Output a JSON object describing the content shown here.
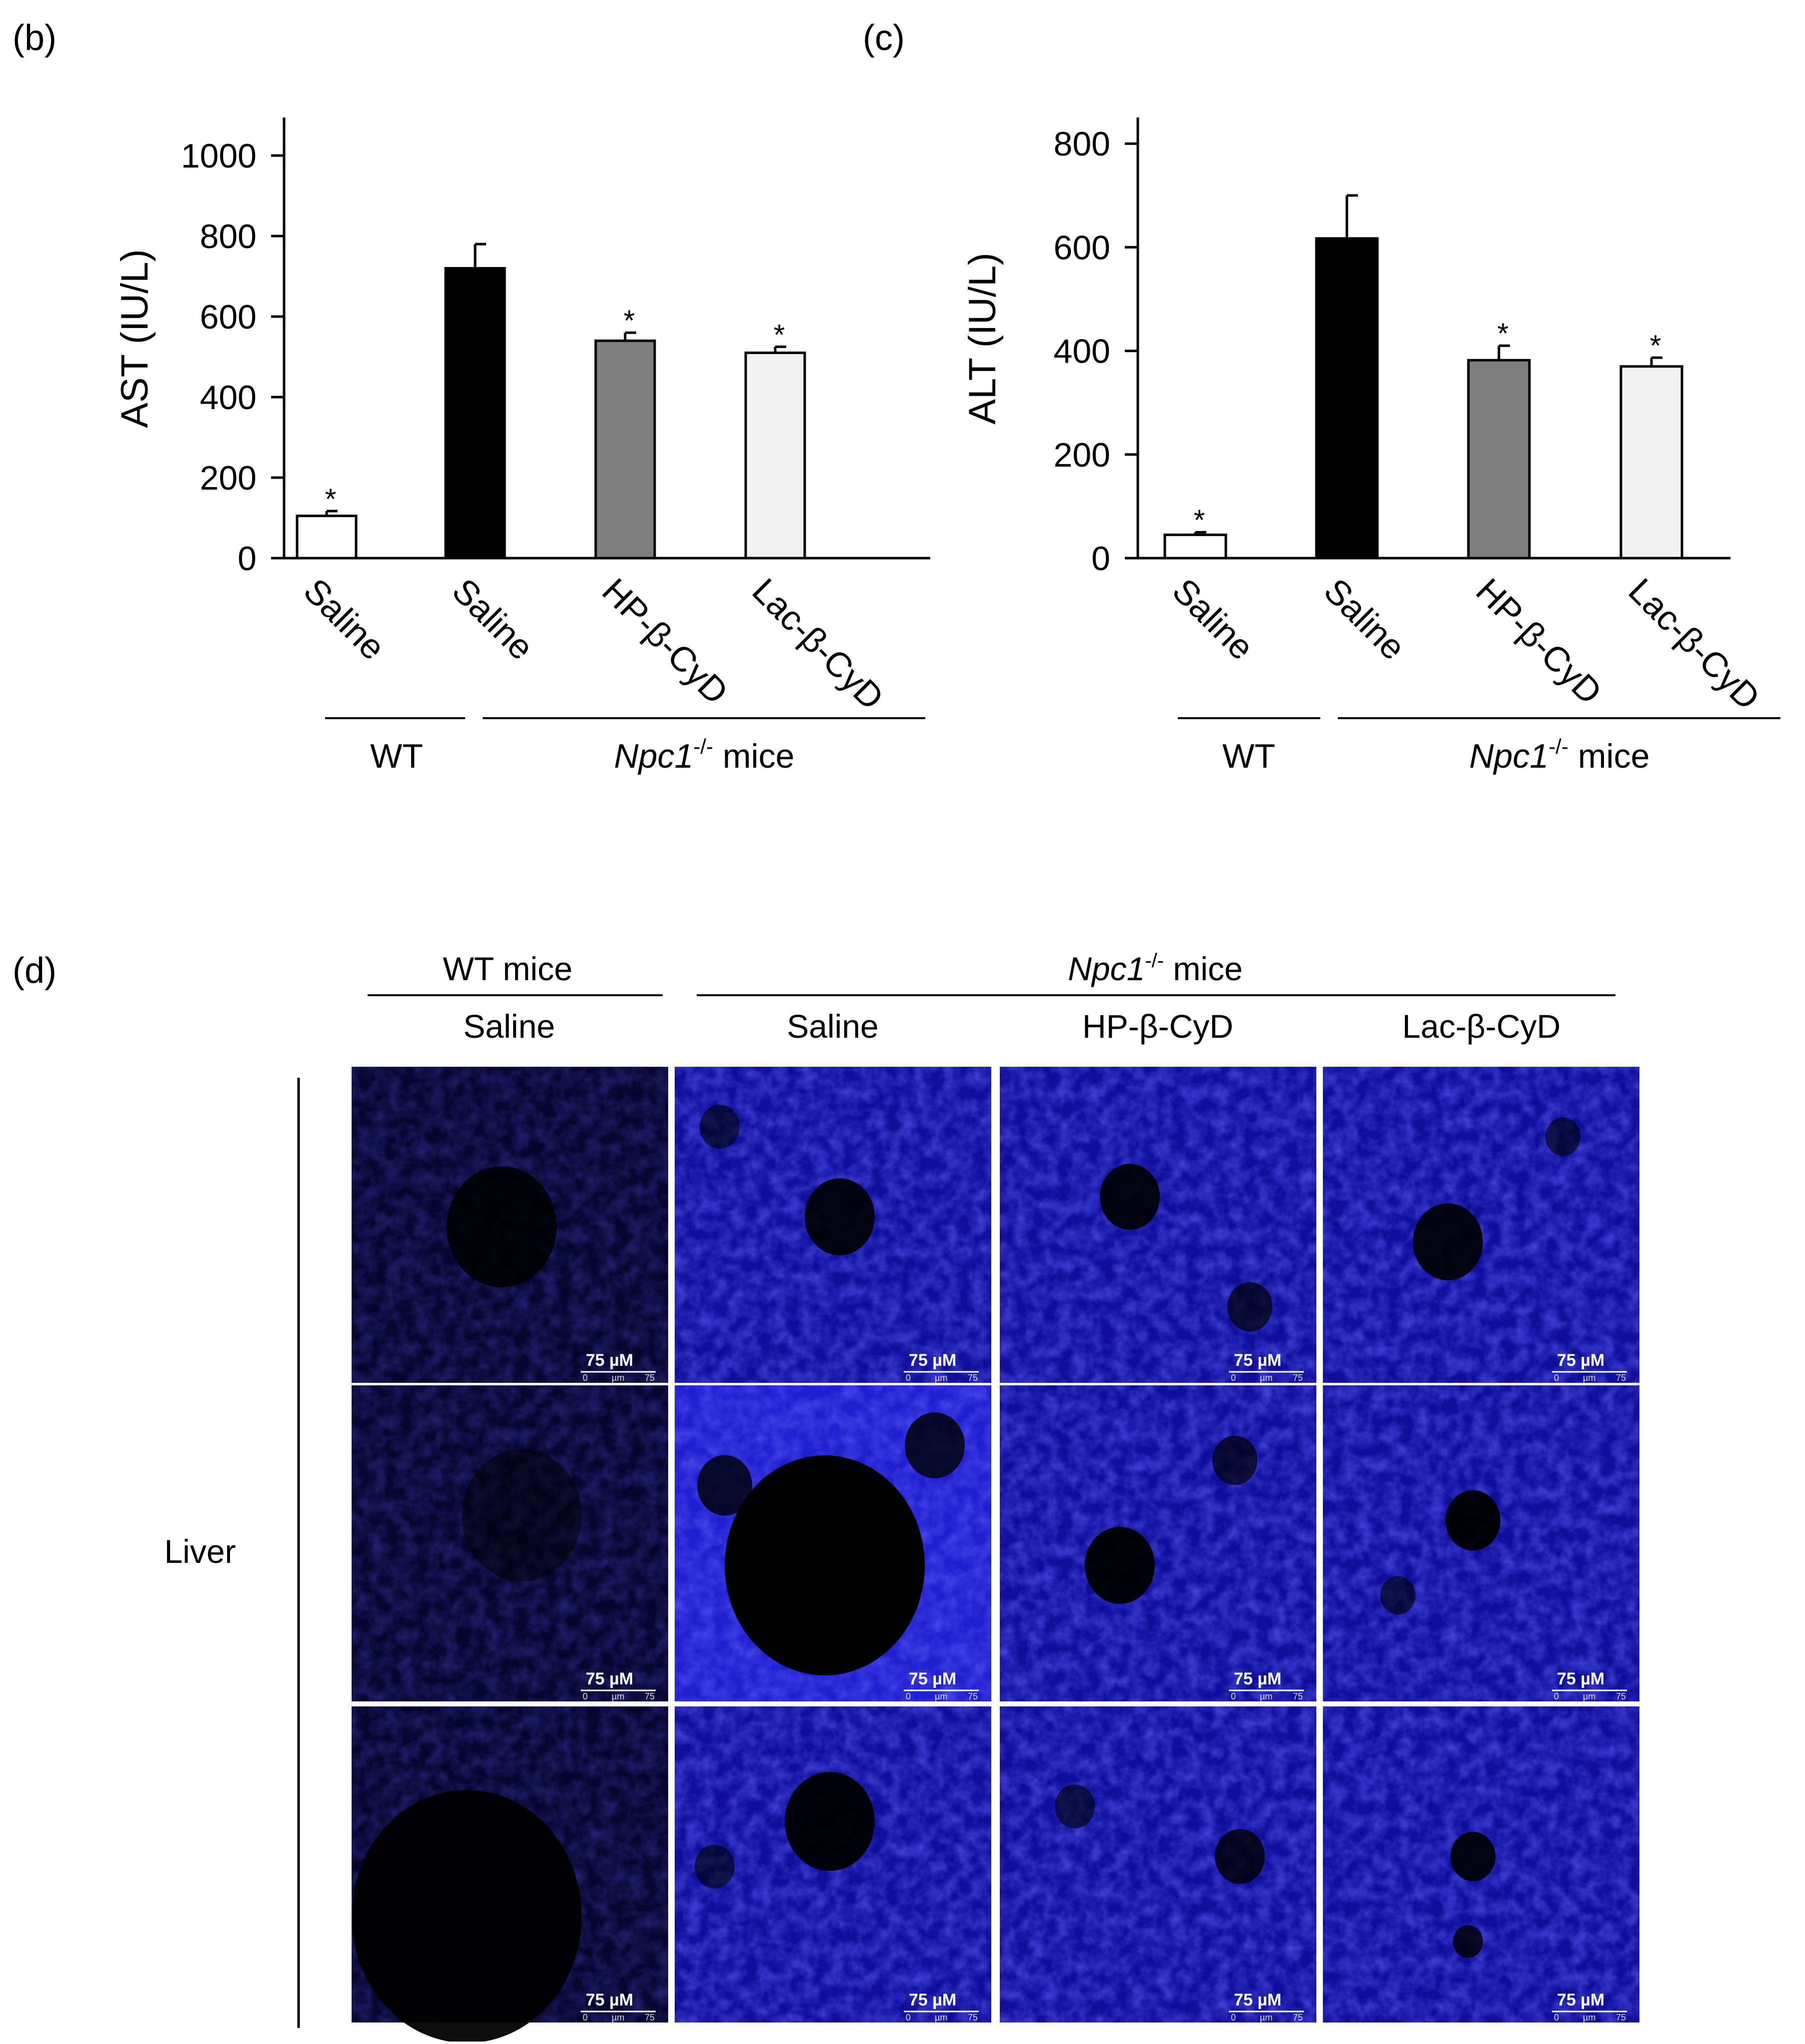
{
  "panels": {
    "b": "(b)",
    "c": "(c)",
    "d": "(d)"
  },
  "groups": {
    "wt": "WT",
    "npc_italic": "Npc1",
    "npc_sup": "-/-",
    "npc_suffix": " mice",
    "wt_mice": "WT mice"
  },
  "categories": [
    "Saline",
    "Saline",
    "HP-β-CyD",
    "Lac-β-CyD"
  ],
  "colors": {
    "wt_saline": "#ffffff",
    "npc_saline": "#000000",
    "hp": "#7f7f7f",
    "lac": "#f2f2f2",
    "micro_blue": "#1a1acc"
  },
  "chart_data": [
    {
      "type": "bar",
      "panel": "(b)",
      "ylabel": "AST (IU/L)",
      "categories": [
        "Saline",
        "Saline",
        "HP-β-CyD",
        "Lac-β-CyD"
      ],
      "values": [
        105,
        720,
        540,
        510
      ],
      "errors": [
        12,
        60,
        20,
        15
      ],
      "significance": [
        "*",
        "",
        "*",
        "*"
      ],
      "ylim": [
        0,
        1100
      ],
      "yticks": [
        0,
        200,
        400,
        600,
        800,
        1000
      ],
      "grid": false
    },
    {
      "type": "bar",
      "panel": "(c)",
      "ylabel": "ALT (IU/L)",
      "categories": [
        "Saline",
        "Saline",
        "HP-β-CyD",
        "Lac-β-CyD"
      ],
      "values": [
        45,
        617,
        382,
        370
      ],
      "errors": [
        5,
        83,
        28,
        17
      ],
      "significance": [
        "*",
        "",
        "*",
        "*"
      ],
      "ylim": [
        0,
        800
      ],
      "yticks": [
        0,
        200,
        400,
        600,
        800
      ],
      "grid": false
    }
  ],
  "micrographs": {
    "column_headers": [
      "Saline",
      "Saline",
      "HP-β-CyD",
      "Lac-β-CyD"
    ],
    "row_label": "Liver",
    "scale_label": "75 µM",
    "scale_ticks": [
      "0",
      "µm",
      "75"
    ],
    "rows": 3,
    "columns": 4
  }
}
